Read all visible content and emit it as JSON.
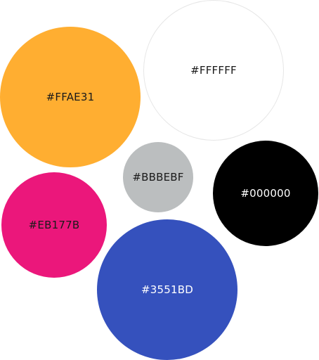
{
  "swatches": [
    {
      "name": "yellow",
      "label": "#FFAE31",
      "color": "#FFAE31",
      "text_color": "#1a1a1a"
    },
    {
      "name": "white",
      "label": "#FFFFFF",
      "color": "#FFFFFF",
      "text_color": "#1a1a1a"
    },
    {
      "name": "gray",
      "label": "#BBBEBF",
      "color": "#BBBEBF",
      "text_color": "#1a1a1a"
    },
    {
      "name": "black",
      "label": "#000000",
      "color": "#000000",
      "text_color": "#ffffff"
    },
    {
      "name": "pink",
      "label": "#EB177B",
      "color": "#EB177B",
      "text_color": "#1a1a1a"
    },
    {
      "name": "blue",
      "label": "#3551BD",
      "color": "#3551BD",
      "text_color": "#ffffff"
    }
  ]
}
